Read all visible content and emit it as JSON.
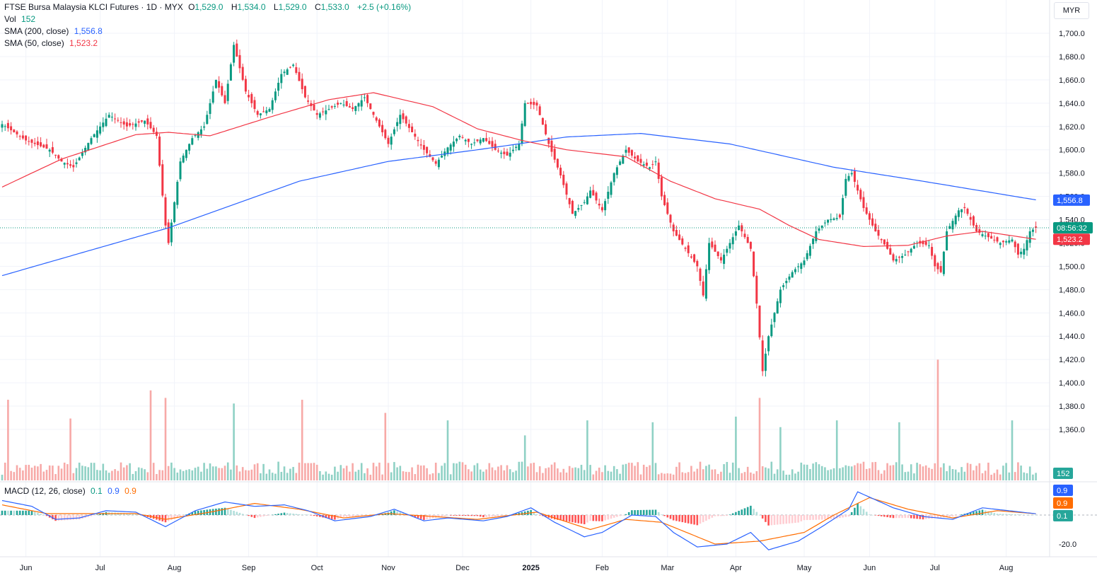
{
  "legend": {
    "title": "FTSE Bursa Malaysia KLCI Futures · 1D · MYX",
    "open_label": "O",
    "open": "1,529.0",
    "high_label": "H",
    "high": "1,534.0",
    "low_label": "L",
    "low": "1,529.0",
    "close_label": "C",
    "close": "1,533.0",
    "change": "+2.5 (+0.16%)",
    "vol_label": "Vol",
    "vol_value": "152",
    "sma200_label": "SMA (200, close)",
    "sma200_value": "1,556.8",
    "sma50_label": "SMA (50, close)",
    "sma50_value": "1,523.2",
    "macd_label": "MACD (12, 26, close)",
    "macd_hist": "0.1",
    "macd_line": "0.9",
    "macd_signal": "0.9"
  },
  "currency": "MYR",
  "badges": {
    "sma200": "1,556.8",
    "countdown": "08:56:32",
    "sma50": "1,523.2",
    "volume": "152",
    "macd_line": "0.9",
    "macd_signal": "0.9",
    "macd_hist": "0.1"
  },
  "colors": {
    "up": "#089981",
    "down": "#f23645",
    "sma200": "#2962ff",
    "sma50": "#f23645",
    "macd": "#2962ff",
    "signal": "#ff6d00"
  },
  "chart_data": {
    "type": "candlestick",
    "price_ylim": [
      1340,
      1710
    ],
    "price_ticks": [
      "1,700.0",
      "1,680.0",
      "1,660.0",
      "1,640.0",
      "1,620.0",
      "1,600.0",
      "1,580.0",
      "1,560.0",
      "1,540.0",
      "1,520.0",
      "1,500.0",
      "1,480.0",
      "1,460.0",
      "1,440.0",
      "1,420.0",
      "1,400.0",
      "1,380.0",
      "1,360.0"
    ],
    "macd_ticks": [
      "-20.0"
    ],
    "x_labels": [
      "Jun",
      "Jul",
      "Aug",
      "Sep",
      "Oct",
      "Nov",
      "Dec",
      "2025",
      "Feb",
      "Mar",
      "Apr",
      "May",
      "Jun",
      "Jul",
      "Aug"
    ],
    "last_price": 1533.0,
    "price_anchors": [
      [
        0,
        1622
      ],
      [
        8,
        1608
      ],
      [
        16,
        1600
      ],
      [
        20,
        1590
      ],
      [
        24,
        1585
      ],
      [
        30,
        1610
      ],
      [
        36,
        1630
      ],
      [
        42,
        1620
      ],
      [
        48,
        1625
      ],
      [
        52,
        1612
      ],
      [
        55,
        1535
      ],
      [
        56,
        1520
      ],
      [
        60,
        1590
      ],
      [
        64,
        1610
      ],
      [
        68,
        1620
      ],
      [
        72,
        1660
      ],
      [
        75,
        1640
      ],
      [
        78,
        1690
      ],
      [
        82,
        1650
      ],
      [
        86,
        1630
      ],
      [
        90,
        1635
      ],
      [
        94,
        1665
      ],
      [
        98,
        1673
      ],
      [
        102,
        1645
      ],
      [
        106,
        1630
      ],
      [
        110,
        1635
      ],
      [
        114,
        1640
      ],
      [
        118,
        1635
      ],
      [
        122,
        1645
      ],
      [
        126,
        1625
      ],
      [
        130,
        1605
      ],
      [
        134,
        1630
      ],
      [
        138,
        1615
      ],
      [
        142,
        1600
      ],
      [
        146,
        1588
      ],
      [
        150,
        1602
      ],
      [
        154,
        1612
      ],
      [
        158,
        1605
      ],
      [
        162,
        1610
      ],
      [
        166,
        1600
      ],
      [
        170,
        1595
      ],
      [
        174,
        1605
      ],
      [
        176,
        1640
      ],
      [
        180,
        1638
      ],
      [
        184,
        1605
      ],
      [
        188,
        1578
      ],
      [
        192,
        1545
      ],
      [
        196,
        1555
      ],
      [
        198,
        1565
      ],
      [
        202,
        1548
      ],
      [
        206,
        1580
      ],
      [
        210,
        1600
      ],
      [
        214,
        1590
      ],
      [
        218,
        1585
      ],
      [
        220,
        1590
      ],
      [
        222,
        1560
      ],
      [
        226,
        1530
      ],
      [
        230,
        1515
      ],
      [
        234,
        1500
      ],
      [
        236,
        1475
      ],
      [
        238,
        1520
      ],
      [
        242,
        1505
      ],
      [
        246,
        1525
      ],
      [
        248,
        1535
      ],
      [
        252,
        1515
      ],
      [
        254,
        1468
      ],
      [
        256,
        1410
      ],
      [
        258,
        1440
      ],
      [
        262,
        1480
      ],
      [
        266,
        1495
      ],
      [
        270,
        1505
      ],
      [
        274,
        1530
      ],
      [
        278,
        1540
      ],
      [
        282,
        1542
      ],
      [
        284,
        1575
      ],
      [
        286,
        1580
      ],
      [
        290,
        1550
      ],
      [
        294,
        1530
      ],
      [
        298,
        1515
      ],
      [
        300,
        1505
      ],
      [
        304,
        1510
      ],
      [
        308,
        1520
      ],
      [
        312,
        1518
      ],
      [
        314,
        1500
      ],
      [
        316,
        1495
      ],
      [
        318,
        1530
      ],
      [
        322,
        1548
      ],
      [
        324,
        1550
      ],
      [
        328,
        1530
      ],
      [
        332,
        1525
      ],
      [
        336,
        1520
      ],
      [
        340,
        1523
      ],
      [
        342,
        1510
      ],
      [
        344,
        1515
      ],
      [
        346,
        1530
      ],
      [
        348,
        1533
      ]
    ],
    "volume_bars": 349,
    "last_volume": 152,
    "volume_spikes": [
      [
        2,
        215
      ],
      [
        23,
        165
      ],
      [
        50,
        240
      ],
      [
        55,
        220
      ],
      [
        78,
        205
      ],
      [
        101,
        215
      ],
      [
        129,
        180
      ],
      [
        150,
        160
      ],
      [
        176,
        120
      ],
      [
        197,
        160
      ],
      [
        219,
        155
      ],
      [
        247,
        170
      ],
      [
        255,
        220
      ],
      [
        262,
        142
      ],
      [
        281,
        160
      ],
      [
        302,
        155
      ],
      [
        315,
        322
      ],
      [
        340,
        160
      ]
    ],
    "sma200_anchors": [
      [
        0,
        1492
      ],
      [
        56,
        1533
      ],
      [
        100,
        1573
      ],
      [
        130,
        1590
      ],
      [
        160,
        1600
      ],
      [
        190,
        1611
      ],
      [
        215,
        1614
      ],
      [
        245,
        1605
      ],
      [
        280,
        1585
      ],
      [
        310,
        1573
      ],
      [
        348,
        1557
      ]
    ],
    "sma50_anchors": [
      [
        0,
        1568
      ],
      [
        20,
        1592
      ],
      [
        45,
        1613
      ],
      [
        56,
        1615
      ],
      [
        70,
        1612
      ],
      [
        90,
        1628
      ],
      [
        110,
        1643
      ],
      [
        125,
        1649
      ],
      [
        145,
        1637
      ],
      [
        160,
        1618
      ],
      [
        175,
        1608
      ],
      [
        190,
        1600
      ],
      [
        210,
        1594
      ],
      [
        225,
        1573
      ],
      [
        240,
        1558
      ],
      [
        255,
        1549
      ],
      [
        265,
        1535
      ],
      [
        275,
        1523
      ],
      [
        290,
        1517
      ],
      [
        305,
        1518
      ],
      [
        318,
        1526
      ],
      [
        330,
        1530
      ],
      [
        348,
        1523.2
      ]
    ],
    "macd_anchors": [
      [
        0,
        10
      ],
      [
        10,
        6
      ],
      [
        18,
        -3
      ],
      [
        26,
        -2
      ],
      [
        35,
        3
      ],
      [
        45,
        2
      ],
      [
        55,
        -8
      ],
      [
        65,
        3
      ],
      [
        75,
        9
      ],
      [
        85,
        6
      ],
      [
        95,
        7
      ],
      [
        103,
        3
      ],
      [
        112,
        -4
      ],
      [
        124,
        -1
      ],
      [
        132,
        4
      ],
      [
        142,
        -4
      ],
      [
        150,
        -2
      ],
      [
        162,
        -4
      ],
      [
        170,
        -1
      ],
      [
        178,
        5
      ],
      [
        186,
        -5
      ],
      [
        196,
        -15
      ],
      [
        202,
        -12
      ],
      [
        212,
        0
      ],
      [
        220,
        -1
      ],
      [
        226,
        -12
      ],
      [
        234,
        -22
      ],
      [
        244,
        -20
      ],
      [
        252,
        -12
      ],
      [
        258,
        -24
      ],
      [
        268,
        -18
      ],
      [
        276,
        -8
      ],
      [
        285,
        4
      ],
      [
        288,
        16
      ],
      [
        300,
        5
      ],
      [
        310,
        -1
      ],
      [
        320,
        -3
      ],
      [
        330,
        5
      ],
      [
        348,
        0.9
      ]
    ],
    "signal_anchors": [
      [
        0,
        7
      ],
      [
        15,
        1
      ],
      [
        30,
        1
      ],
      [
        45,
        1
      ],
      [
        55,
        -3
      ],
      [
        70,
        2
      ],
      [
        85,
        8
      ],
      [
        100,
        4
      ],
      [
        115,
        -2
      ],
      [
        130,
        1
      ],
      [
        145,
        -1
      ],
      [
        160,
        -3
      ],
      [
        180,
        2
      ],
      [
        198,
        -10
      ],
      [
        210,
        -3
      ],
      [
        222,
        -5
      ],
      [
        240,
        -20
      ],
      [
        255,
        -18
      ],
      [
        270,
        -12
      ],
      [
        280,
        0
      ],
      [
        292,
        12
      ],
      [
        305,
        4
      ],
      [
        320,
        -2
      ],
      [
        335,
        3
      ],
      [
        348,
        0.9
      ]
    ]
  }
}
